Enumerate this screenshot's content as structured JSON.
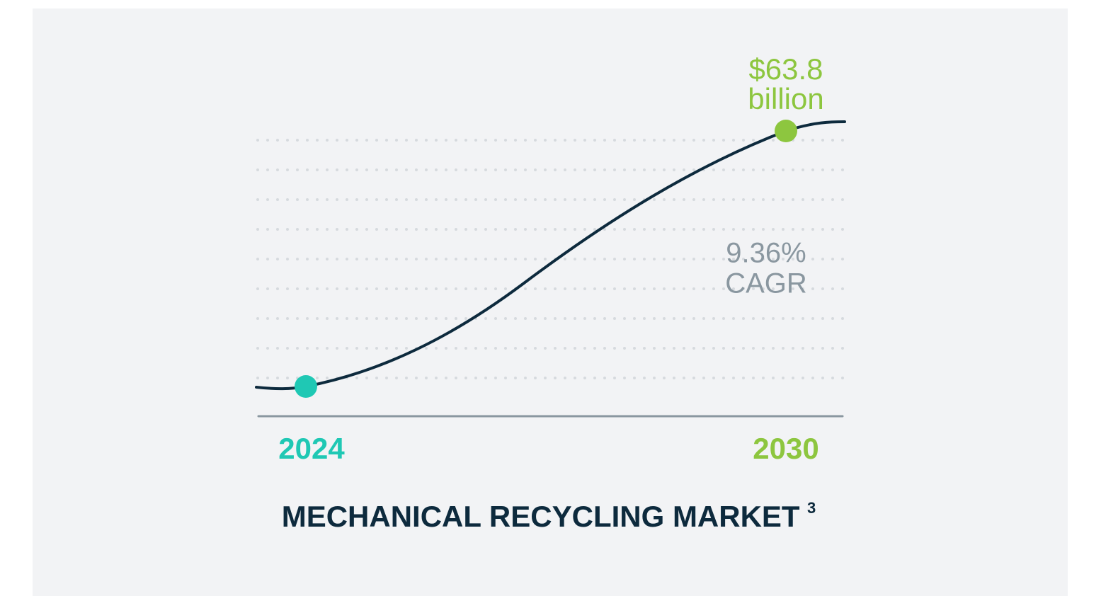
{
  "end_value": {
    "amount": "$63.8",
    "unit": "billion"
  },
  "growth": {
    "rate": "9.36%",
    "label": "CAGR"
  },
  "start_year": "2024",
  "end_year": "2030",
  "title": {
    "text": "MECHANICAL RECYCLING MARKET",
    "footnote": "3"
  }
}
